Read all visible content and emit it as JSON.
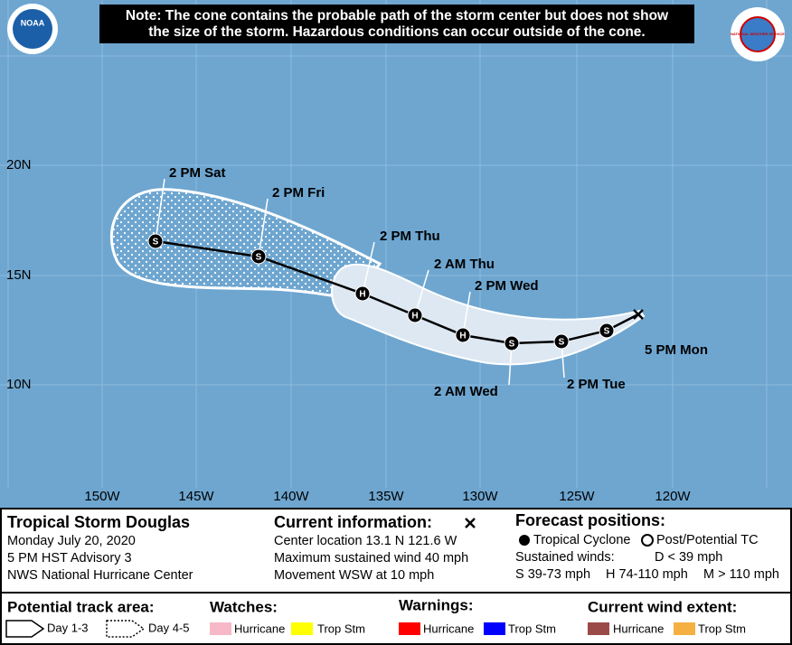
{
  "header": {
    "note_lines": [
      "Note: The cone contains the probable path of the storm center but does not show",
      "the size of the storm. Hazardous conditions can occur outside of the cone."
    ],
    "left_logo": "NOAA",
    "right_logo": "NATIONAL WEATHER SERVICE"
  },
  "map": {
    "lat_labels": [
      "20N",
      "15N",
      "10N"
    ],
    "lon_labels": [
      "150W",
      "145W",
      "140W",
      "135W",
      "130W",
      "125W",
      "120W"
    ],
    "current_label": "5 PM Mon",
    "positions": [
      {
        "marker": "S"
      },
      {
        "marker": "S",
        "label": "2 PM Tue"
      },
      {
        "marker": "S",
        "label": "2 AM Wed"
      },
      {
        "marker": "H",
        "label": "2 PM Wed"
      },
      {
        "marker": "H",
        "label": "2 AM Thu"
      },
      {
        "marker": "H",
        "label": "2 PM Thu"
      },
      {
        "marker": "S",
        "label": "2 PM Fri"
      },
      {
        "marker": "S",
        "label": "2 PM Sat"
      }
    ]
  },
  "info": {
    "storm": {
      "name": "Tropical Storm Douglas",
      "lines": [
        "Monday July 20, 2020",
        "5 PM HST Advisory 3",
        "NWS National Hurricane Center"
      ]
    },
    "current": {
      "title": "Current information:",
      "lines": [
        "Center location 13.1 N 121.6 W",
        "Maximum sustained wind 40 mph",
        "Movement WSW at 10 mph"
      ]
    },
    "forecast": {
      "title": "Forecast positions:",
      "tropical": "Tropical Cyclone",
      "post": "Post/Potential TC",
      "winds_title": "Sustained winds:",
      "d": "D < 39 mph",
      "s": "S 39-73 mph",
      "h": "H 74-110 mph",
      "m": "M > 110 mph"
    }
  },
  "legend": {
    "track_title": "Potential track area:",
    "day13": "Day 1-3",
    "day45": "Day 4-5",
    "watches_title": "Watches:",
    "watch_hurricane": "Hurricane",
    "watch_ts": "Trop Stm",
    "warnings_title": "Warnings:",
    "warn_hurricane": "Hurricane",
    "warn_ts": "Trop Stm",
    "wind_title": "Current wind extent:",
    "wind_hurricane": "Hurricane",
    "wind_ts": "Trop Stm"
  }
}
